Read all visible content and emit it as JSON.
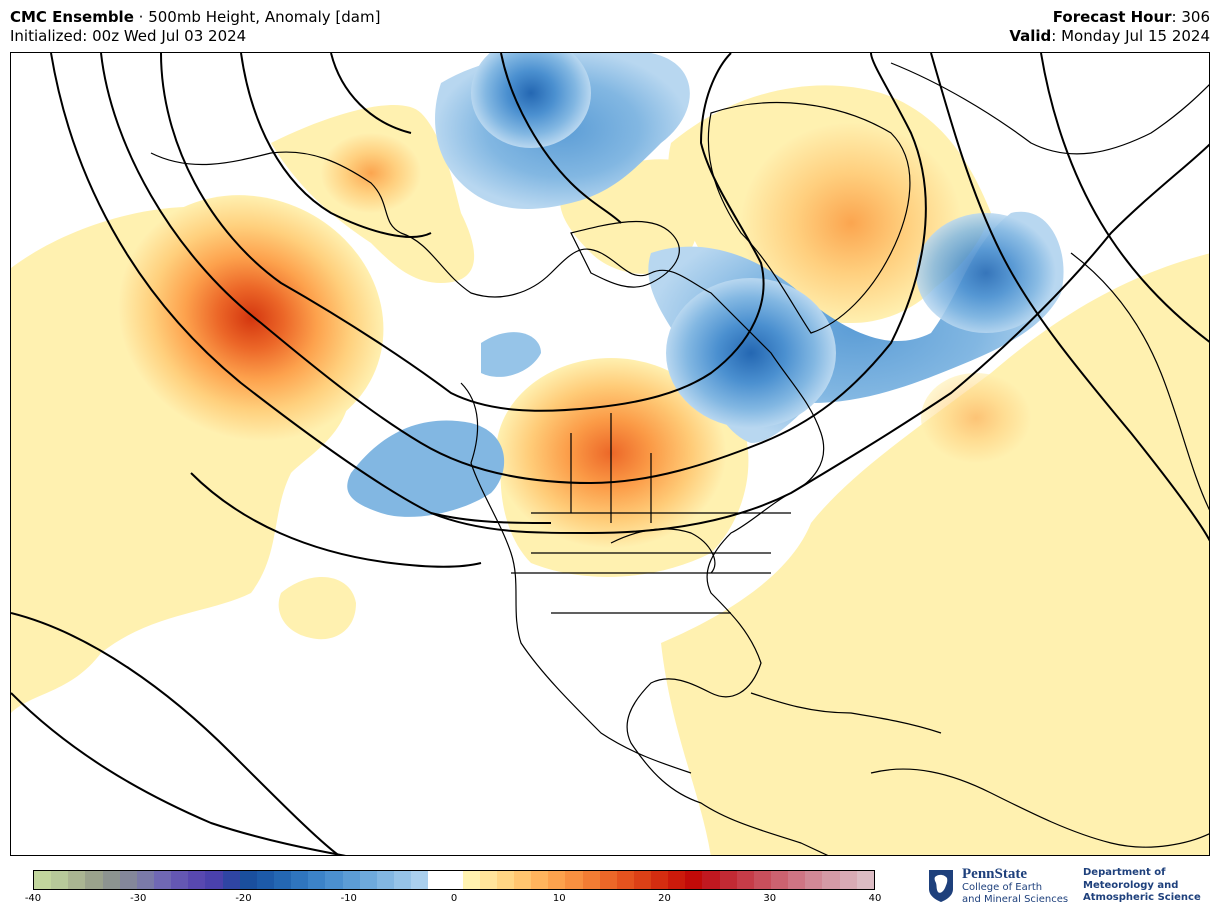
{
  "header": {
    "model": "CMC Ensemble",
    "separator": " · ",
    "product": "500mb Height, Anomaly [dam]",
    "initialized_label": "Initialized: 00z Wed Jul 03 2024",
    "forecast_hour_label": "Forecast Hour",
    "forecast_hour_value": ": 306",
    "valid_label": "Valid",
    "valid_value": ": Monday Jul 15 2024"
  },
  "colorbar": {
    "ticks": [
      "-40",
      "-30",
      "-20",
      "-10",
      "0",
      "10",
      "20",
      "30",
      "40"
    ],
    "units": "dam",
    "colors": [
      "#c2d69e",
      "#b7c99a",
      "#aab592",
      "#9aa28c",
      "#8c9390",
      "#84879a",
      "#7b7aa8",
      "#7068b4",
      "#6457b3",
      "#5848b0",
      "#4a41ac",
      "#2f45a4",
      "#1a4f9e",
      "#1d5aa8",
      "#2467b2",
      "#2f75be",
      "#3c83c8",
      "#4b90d0",
      "#5c9dd6",
      "#6eaadc",
      "#82b7e2",
      "#96c4e8",
      "#aad0ee",
      "#ffffff",
      "#ffffff",
      "#fff3b0",
      "#ffe49b",
      "#ffd684",
      "#ffc56f",
      "#ffb45d",
      "#fda24d",
      "#f99040",
      "#f37c33",
      "#ec6728",
      "#e5531e",
      "#dc4016",
      "#d42d10",
      "#cb1a0b",
      "#c10a08",
      "#c01820",
      "#c22a34",
      "#c63c48",
      "#c94f5c",
      "#cc6270",
      "#cf7584",
      "#d18896",
      "#d49aa6",
      "#d8abb5",
      "#dcbcc4"
    ]
  },
  "logo": {
    "name": "PennState",
    "line1": "College of Earth",
    "line2": "and Mineral Sciences"
  },
  "department": {
    "line1": "Department of",
    "line2": "Meteorology and",
    "line3": "Atmospheric Science"
  }
}
